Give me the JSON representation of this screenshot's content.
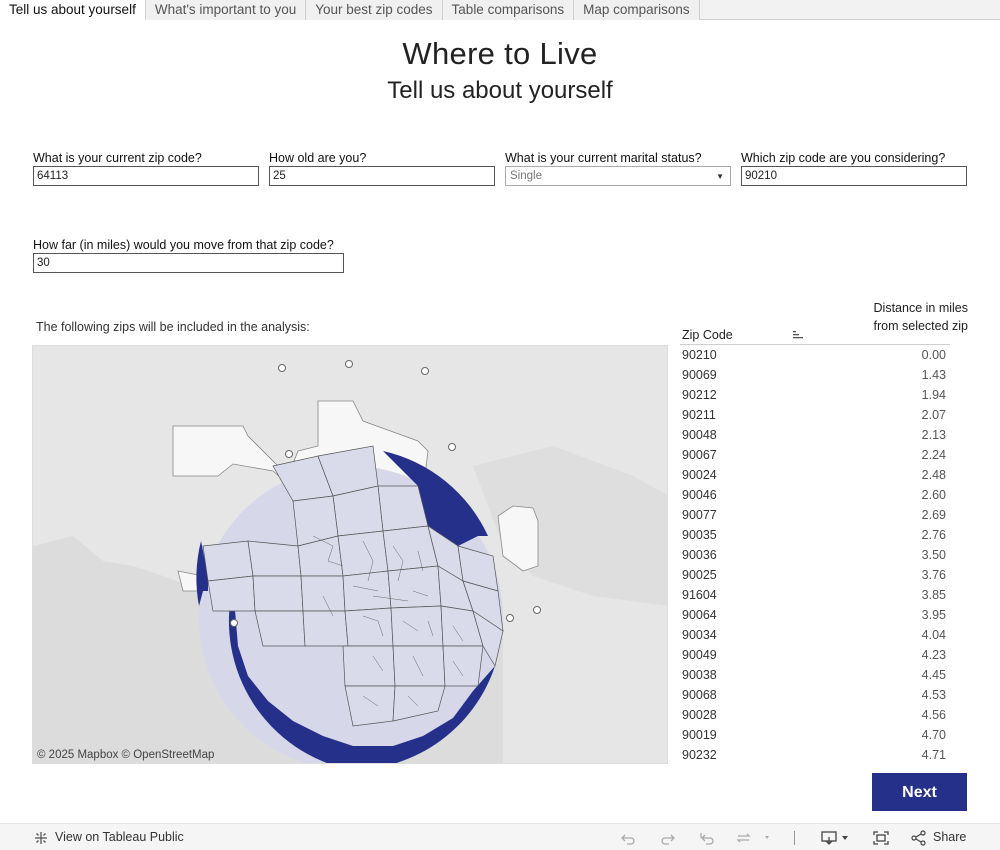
{
  "tabs": [
    {
      "label": "Tell us about yourself",
      "active": true
    },
    {
      "label": "What's important to you",
      "active": false
    },
    {
      "label": "Your best zip codes",
      "active": false
    },
    {
      "label": "Table comparisons",
      "active": false
    },
    {
      "label": "Map comparisons",
      "active": false
    }
  ],
  "header": {
    "title": "Where to Live",
    "subtitle": "Tell us about yourself"
  },
  "params": {
    "current_zip": {
      "label": "What is your current zip code?",
      "value": "64113"
    },
    "age": {
      "label": "How old are you?",
      "value": "25"
    },
    "marital": {
      "label": "What is your current marital status?",
      "value": "Single"
    },
    "considering_zip": {
      "label": "Which zip code are you considering?",
      "value": "90210"
    },
    "distance": {
      "label": "How far (in miles) would you move from that zip code?",
      "value": "30"
    }
  },
  "analysis_note": "The following zips will be included in the analysis:",
  "map": {
    "attribution": "© 2025 Mapbox  © OpenStreetMap",
    "colors": {
      "circle": "#243089",
      "selected_fill": "#d6d8ea",
      "land": "#e6e6e6",
      "outside_zip": "#f7f7f7"
    }
  },
  "table": {
    "zip_header": "Zip Code",
    "distance_header_line1": "Distance in miles",
    "distance_header_line2": "from selected zip",
    "rows": [
      {
        "zip": "90210",
        "distance": "0.00"
      },
      {
        "zip": "90069",
        "distance": "1.43"
      },
      {
        "zip": "90212",
        "distance": "1.94"
      },
      {
        "zip": "90211",
        "distance": "2.07"
      },
      {
        "zip": "90048",
        "distance": "2.13"
      },
      {
        "zip": "90067",
        "distance": "2.24"
      },
      {
        "zip": "90024",
        "distance": "2.48"
      },
      {
        "zip": "90046",
        "distance": "2.60"
      },
      {
        "zip": "90077",
        "distance": "2.69"
      },
      {
        "zip": "90035",
        "distance": "2.76"
      },
      {
        "zip": "90036",
        "distance": "3.50"
      },
      {
        "zip": "90025",
        "distance": "3.76"
      },
      {
        "zip": "91604",
        "distance": "3.85"
      },
      {
        "zip": "90064",
        "distance": "3.95"
      },
      {
        "zip": "90034",
        "distance": "4.04"
      },
      {
        "zip": "90049",
        "distance": "4.23"
      },
      {
        "zip": "90038",
        "distance": "4.45"
      },
      {
        "zip": "90068",
        "distance": "4.53"
      },
      {
        "zip": "90028",
        "distance": "4.56"
      },
      {
        "zip": "90019",
        "distance": "4.70"
      },
      {
        "zip": "90232",
        "distance": "4.71"
      }
    ]
  },
  "next_button": {
    "label": "Next",
    "color": "#243089"
  },
  "footer": {
    "view_label": "View on Tableau Public",
    "share_label": "Share"
  }
}
